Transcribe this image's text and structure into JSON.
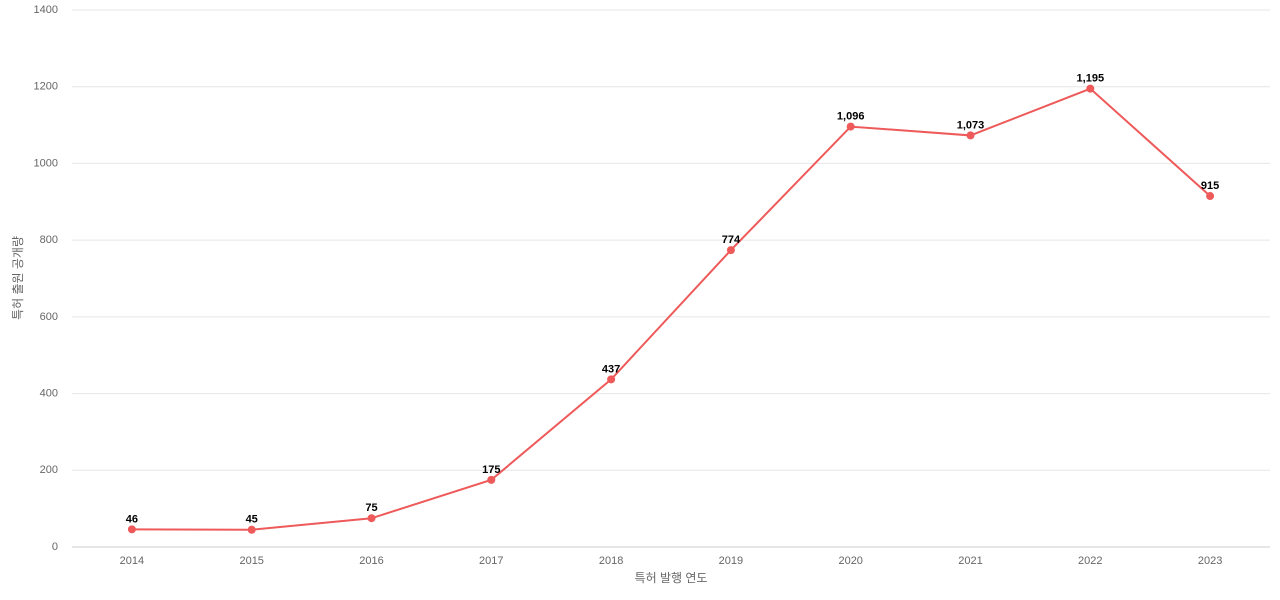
{
  "chart_data": {
    "type": "line",
    "x_label": "특허 발행 연도",
    "y_label": "특허 출원 공개량",
    "categories": [
      "2014",
      "2015",
      "2016",
      "2017",
      "2018",
      "2019",
      "2020",
      "2021",
      "2022",
      "2023"
    ],
    "values": [
      46,
      45,
      75,
      175,
      437,
      774,
      1096,
      1073,
      1195,
      915
    ],
    "value_labels": [
      "46",
      "45",
      "75",
      "175",
      "437",
      "774",
      "1,096",
      "1,073",
      "1,195",
      "915"
    ],
    "color": "#ee5a5a",
    "ylim": [
      0,
      1400
    ],
    "yticks": [
      0,
      200,
      400,
      600,
      800,
      1000,
      1200,
      1400
    ],
    "grid": true
  }
}
